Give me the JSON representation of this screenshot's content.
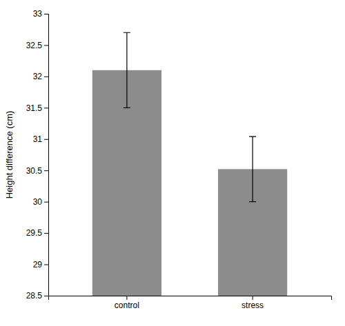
{
  "chart_data": {
    "type": "bar",
    "categories": [
      "control",
      "stress"
    ],
    "values": [
      32.1,
      30.52
    ],
    "errors": [
      0.6,
      0.52
    ],
    "color": "#8c8c8c",
    "ylabel": "Height difference (cm)",
    "ylim": [
      28.5,
      33
    ],
    "yticks": [
      28.5,
      29,
      29.5,
      30,
      30.5,
      31,
      31.5,
      32,
      32.5,
      33
    ],
    "grid": false
  }
}
